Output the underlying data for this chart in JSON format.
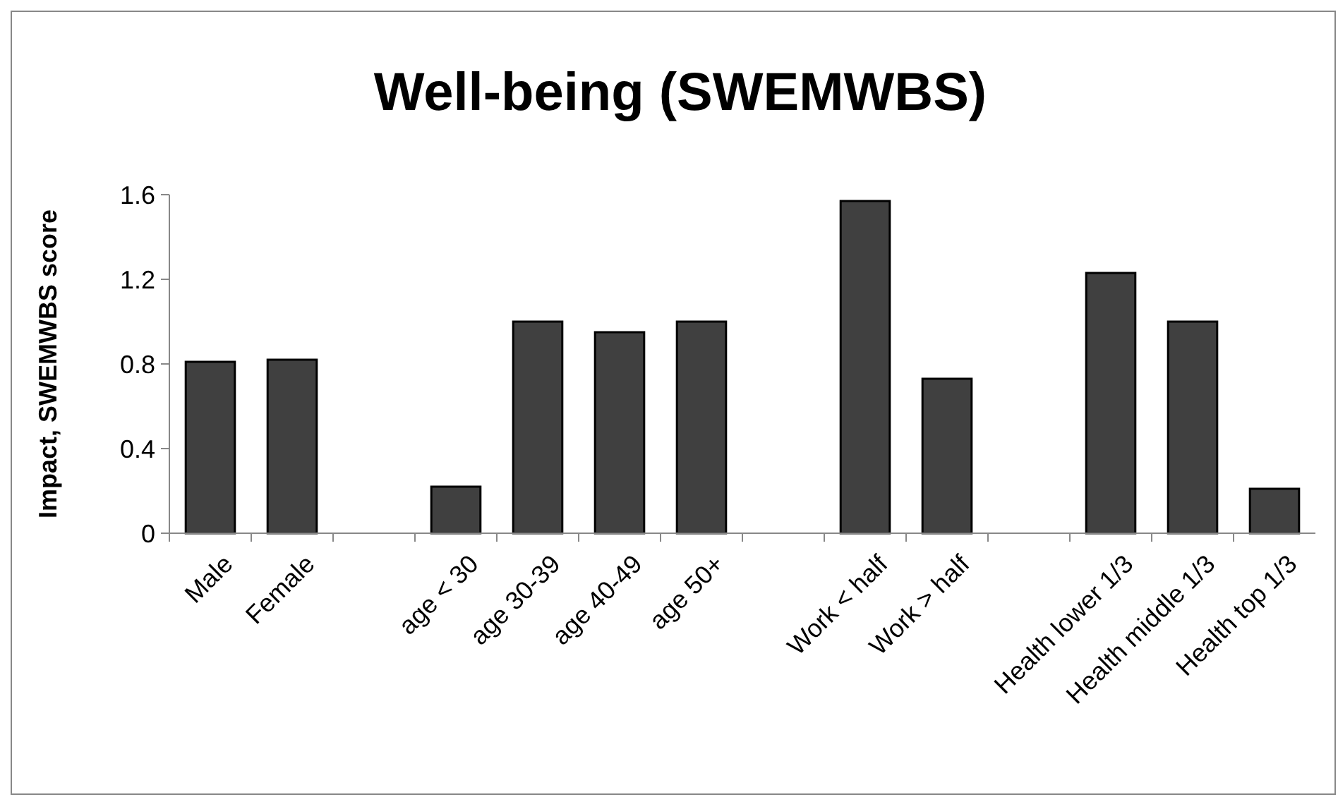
{
  "chart_data": {
    "type": "bar",
    "title": "Well-being (SWEMWBS)",
    "ylabel": "Impact, SWEMWBS score",
    "categories": [
      "Male",
      "Female",
      null,
      "age < 30",
      "age 30-39",
      "age 40-49",
      "age 50+",
      null,
      "Work < half",
      "Work > half",
      null,
      "Health lower 1/3",
      "Health middle 1/3",
      "Health top 1/3"
    ],
    "values": [
      0.81,
      0.82,
      null,
      0.22,
      1.0,
      0.95,
      1.0,
      null,
      1.57,
      0.73,
      null,
      1.23,
      1.0,
      0.21
    ],
    "color": "#404040",
    "ylim": [
      0,
      1.6
    ],
    "yticks": [
      0,
      0.4,
      0.8,
      1.2,
      1.6
    ],
    "grid": false
  }
}
